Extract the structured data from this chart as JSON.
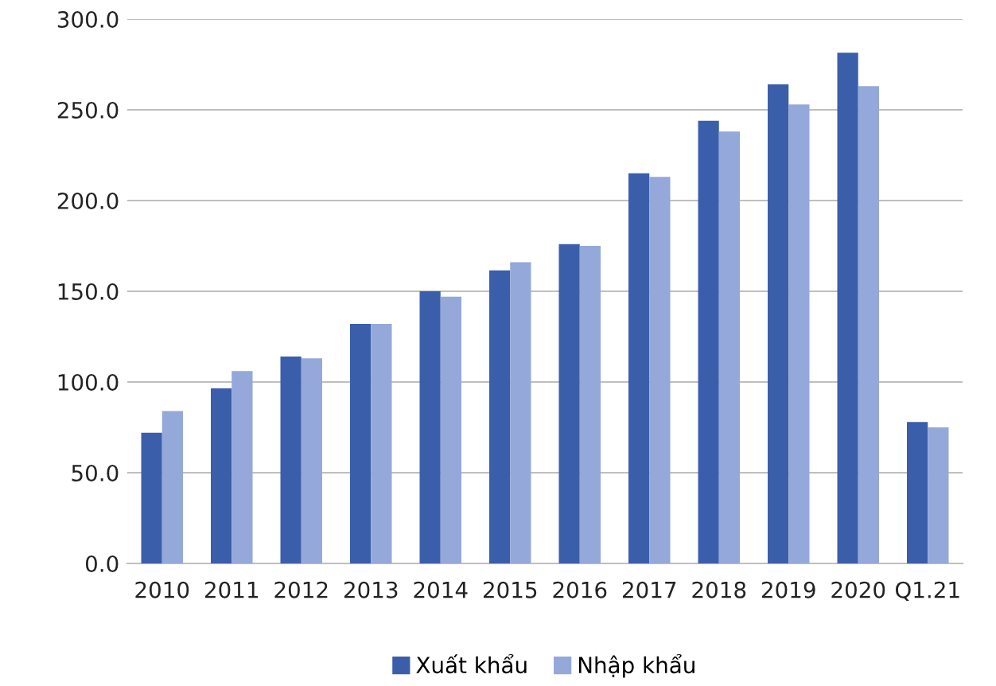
{
  "chart_data": {
    "type": "bar",
    "categories": [
      "2010",
      "2011",
      "2012",
      "2013",
      "2014",
      "2015",
      "2016",
      "2017",
      "2018",
      "2019",
      "2020",
      "Q1.21"
    ],
    "series": [
      {
        "name": "Xuất khẩu",
        "color": "#3b5eab",
        "values": [
          72,
          96.5,
          114,
          132,
          150,
          161.5,
          176,
          215,
          244,
          264,
          281.5,
          78
        ]
      },
      {
        "name": "Nhập khẩu",
        "color": "#94a8d9",
        "values": [
          84,
          106,
          113,
          132,
          147,
          166,
          175,
          213,
          238,
          253,
          263,
          75
        ]
      }
    ],
    "ylim": [
      0,
      300
    ],
    "yticks": [
      {
        "value": 0,
        "label": "0.0"
      },
      {
        "value": 50,
        "label": "50.0"
      },
      {
        "value": 100,
        "label": "100.0"
      },
      {
        "value": 150,
        "label": "150.0"
      },
      {
        "value": 200,
        "label": "200.0"
      },
      {
        "value": 250,
        "label": "250.0"
      },
      {
        "value": 300,
        "label": "300.0"
      }
    ],
    "grid": "y",
    "legend": "bottom"
  }
}
